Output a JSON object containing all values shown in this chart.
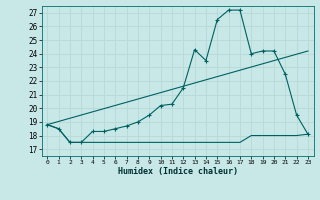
{
  "xlabel": "Humidex (Indice chaleur)",
  "bg_color": "#c8e8e8",
  "grid_color": "#b8d8d8",
  "line_color": "#006060",
  "xlim": [
    -0.5,
    23.5
  ],
  "ylim": [
    16.5,
    27.5
  ],
  "xticks": [
    0,
    1,
    2,
    3,
    4,
    5,
    6,
    7,
    8,
    9,
    10,
    11,
    12,
    13,
    14,
    15,
    16,
    17,
    18,
    19,
    20,
    21,
    22,
    23
  ],
  "yticks": [
    17,
    18,
    19,
    20,
    21,
    22,
    23,
    24,
    25,
    26,
    27
  ],
  "data_line": [
    [
      0,
      18.8
    ],
    [
      1,
      18.5
    ],
    [
      2,
      17.5
    ],
    [
      3,
      17.5
    ],
    [
      4,
      18.3
    ],
    [
      5,
      18.3
    ],
    [
      6,
      18.5
    ],
    [
      7,
      18.7
    ],
    [
      8,
      19.0
    ],
    [
      9,
      19.5
    ],
    [
      10,
      20.2
    ],
    [
      11,
      20.3
    ],
    [
      12,
      21.5
    ],
    [
      13,
      24.3
    ],
    [
      14,
      23.5
    ],
    [
      15,
      26.5
    ],
    [
      16,
      27.2
    ],
    [
      17,
      27.2
    ],
    [
      18,
      24.0
    ],
    [
      19,
      24.2
    ],
    [
      20,
      24.2
    ],
    [
      21,
      22.5
    ],
    [
      22,
      19.5
    ],
    [
      23,
      18.1
    ]
  ],
  "flat_line": [
    [
      0,
      18.8
    ],
    [
      1,
      18.5
    ],
    [
      2,
      17.5
    ],
    [
      3,
      17.5
    ],
    [
      4,
      17.5
    ],
    [
      5,
      17.5
    ],
    [
      6,
      17.5
    ],
    [
      7,
      17.5
    ],
    [
      8,
      17.5
    ],
    [
      9,
      17.5
    ],
    [
      10,
      17.5
    ],
    [
      11,
      17.5
    ],
    [
      12,
      17.5
    ],
    [
      13,
      17.5
    ],
    [
      14,
      17.5
    ],
    [
      15,
      17.5
    ],
    [
      16,
      17.5
    ],
    [
      17,
      17.5
    ],
    [
      18,
      18.0
    ],
    [
      19,
      18.0
    ],
    [
      20,
      18.0
    ],
    [
      21,
      18.0
    ],
    [
      22,
      18.0
    ],
    [
      23,
      18.1
    ]
  ],
  "reg_line_x": [
    0,
    23
  ],
  "reg_line_y": [
    18.8,
    24.2
  ]
}
